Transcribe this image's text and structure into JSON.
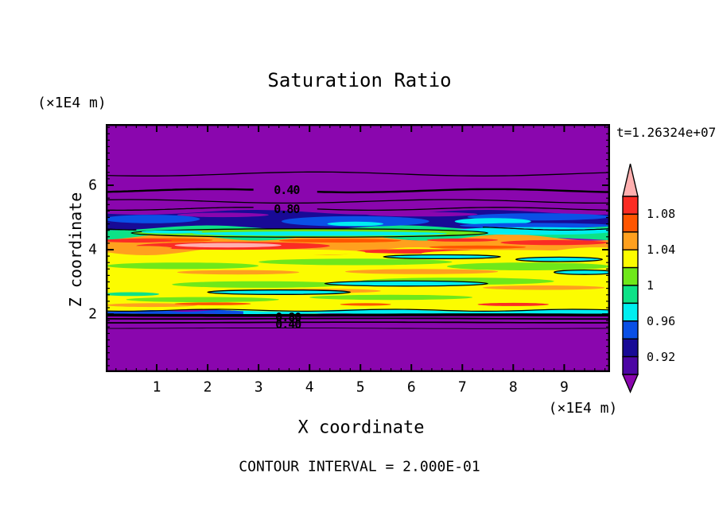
{
  "title": "Saturation Ratio",
  "time_annotation": "t=1.26324e+07",
  "footer_note": "CONTOUR INTERVAL = 2.000E-01",
  "x_axis": {
    "label": "X coordinate",
    "unit": "(×1E4 m)",
    "ticks": [
      1,
      2,
      3,
      4,
      5,
      6,
      7,
      8,
      9
    ],
    "minor_step": 0.2,
    "range": [
      0,
      9.9
    ]
  },
  "y_axis": {
    "label": "Z coordinate",
    "unit": "(×1E4 m)",
    "ticks": [
      2,
      4,
      6
    ],
    "minor_step": 0.2,
    "range": [
      0.2,
      7.9
    ]
  },
  "colorbar": {
    "over_arrow_color": "#FFB0B0",
    "under_arrow_color": "#8A06AE",
    "segments": [
      {
        "color": "#FB2C24",
        "label": "1.08"
      },
      {
        "color": "#FF5500"
      },
      {
        "color": "#FFA01E",
        "label": "1.04"
      },
      {
        "color": "#FCFC00"
      },
      {
        "color": "#6FE81A",
        "label": "1"
      },
      {
        "color": "#0DE287"
      },
      {
        "color": "#00EEF0",
        "label": "0.96"
      },
      {
        "color": "#0A50E6"
      },
      {
        "color": "#180A96",
        "label": "0.92"
      },
      {
        "color": "#4C06A4"
      }
    ]
  },
  "contour_labels": [
    {
      "text": "0.40",
      "x": 3.55,
      "z": 5.85
    },
    {
      "text": "0.80",
      "x": 3.55,
      "z": 5.27
    },
    {
      "text": "0.80",
      "x": 3.58,
      "z": 1.9
    },
    {
      "text": "0.40",
      "x": 3.58,
      "z": 1.67
    }
  ],
  "chart_data": {
    "type": "heatmap",
    "title": "Saturation Ratio",
    "xlabel": "X coordinate (×1E4 m)",
    "ylabel": "Z coordinate (×1E4 m)",
    "xlim": [
      0,
      9.9
    ],
    "ylim": [
      0.2,
      7.9
    ],
    "time": "t=1.26324e+07",
    "contour_interval": 0.2,
    "colormap_levels": [
      0.9,
      0.92,
      0.94,
      0.96,
      0.98,
      1.0,
      1.02,
      1.04,
      1.06,
      1.08,
      1.1
    ],
    "colormap_colors": [
      "#4C06A4",
      "#180A96",
      "#0A50E6",
      "#00EEF0",
      "#0DE287",
      "#6FE81A",
      "#FCFC00",
      "#FFA01E",
      "#FF5500",
      "#FB2C24"
    ],
    "background_color": "#8A06AE",
    "bands": [
      {
        "z0": 4.62,
        "z1": 5.16,
        "color": "#180A96",
        "amp": 3.0,
        "freq": 2.2,
        "phase": 0.6
      },
      {
        "z0": 4.3,
        "z1": 4.68,
        "color": "#0DE287",
        "amp": 3.0,
        "freq": 2.6,
        "phase": 1.4
      },
      {
        "z0": 3.72,
        "z1": 4.38,
        "color": "#FFA01E",
        "amp": 4.0,
        "freq": 3.0,
        "phase": 2.2
      },
      {
        "z0": 2.06,
        "z1": 3.95,
        "color": "#FCFC00",
        "amp": 5.0,
        "freq": 2.8,
        "phase": 0.2
      },
      {
        "z0": 1.99,
        "z1": 2.12,
        "x0": 2.5,
        "x1": 9.9,
        "color": "#00EEF0",
        "amp": 1.5,
        "freq": 2.0,
        "phase": 0.0
      },
      {
        "z0": 1.99,
        "z1": 2.1,
        "x0": 0.0,
        "x1": 2.7,
        "color": "#0A50E6",
        "amp": 1.0,
        "freq": 2.0,
        "phase": 0.5
      }
    ],
    "lenses": [
      {
        "cx": 2.3,
        "cz": 5.08,
        "rx": 0.9,
        "rz": 0.07,
        "color": "#8A06AE"
      },
      {
        "cx": 6.2,
        "cz": 5.1,
        "rx": 1.1,
        "rz": 0.07,
        "color": "#8A06AE"
      },
      {
        "cx": 0.9,
        "cz": 4.95,
        "rx": 0.95,
        "rz": 0.13,
        "color": "#0A50E6"
      },
      {
        "cx": 4.9,
        "cz": 4.88,
        "rx": 1.45,
        "rz": 0.16,
        "color": "#0A50E6"
      },
      {
        "cx": 8.5,
        "cz": 5.02,
        "rx": 1.4,
        "rz": 0.11,
        "color": "#0A50E6"
      },
      {
        "cx": 7.6,
        "cz": 4.88,
        "rx": 0.75,
        "rz": 0.1,
        "color": "#00EEF0"
      },
      {
        "cx": 4.9,
        "cz": 4.8,
        "rx": 0.55,
        "rz": 0.07,
        "color": "#00EEF0"
      },
      {
        "cx": 8.45,
        "cz": 4.75,
        "rx": 1.5,
        "rz": 0.08,
        "color": "#0A50E6"
      },
      {
        "cx": 8.4,
        "cz": 4.58,
        "rx": 1.6,
        "rz": 0.12,
        "color": "#00EEF0"
      },
      {
        "cx": 4.0,
        "cz": 4.52,
        "rx": 3.5,
        "rz": 0.13,
        "color": "#6FE81A",
        "stroke": true
      },
      {
        "cx": 4.2,
        "cz": 4.5,
        "rx": 2.5,
        "rz": 0.07,
        "color": "#00EEF0"
      },
      {
        "cx": 1.3,
        "cz": 4.55,
        "rx": 0.6,
        "rz": 0.05,
        "color": "#00EEF0"
      },
      {
        "cx": 1.1,
        "cz": 4.3,
        "rx": 1.0,
        "rz": 0.06,
        "color": "#FF5500"
      },
      {
        "cx": 4.6,
        "cz": 4.28,
        "rx": 1.2,
        "rz": 0.06,
        "color": "#FF5500"
      },
      {
        "cx": 7.0,
        "cz": 4.3,
        "rx": 0.7,
        "rz": 0.05,
        "color": "#FB2C24"
      },
      {
        "cx": 7.3,
        "cz": 4.08,
        "rx": 0.95,
        "rz": 0.05,
        "color": "#FF5500"
      },
      {
        "cx": 0.6,
        "cz": 4.28,
        "rx": 0.7,
        "rz": 0.06,
        "color": "#FB2C24"
      },
      {
        "cx": 2.5,
        "cz": 4.12,
        "rx": 1.9,
        "rz": 0.12,
        "color": "#FB2C24"
      },
      {
        "cx": 2.4,
        "cz": 4.14,
        "rx": 1.05,
        "rz": 0.07,
        "color": "#FFB0B0"
      },
      {
        "cx": 6.1,
        "cz": 3.95,
        "rx": 1.2,
        "rz": 0.07,
        "color": "#FB2C24"
      },
      {
        "cx": 8.8,
        "cz": 4.22,
        "rx": 1.05,
        "rz": 0.08,
        "color": "#FB2C24"
      },
      {
        "cx": 3.6,
        "cz": 3.92,
        "rx": 1.5,
        "rz": 0.09,
        "color": "#FCFC00"
      },
      {
        "cx": 7.9,
        "cz": 3.88,
        "rx": 1.7,
        "rz": 0.11,
        "color": "#FCFC00"
      },
      {
        "cx": 0.6,
        "cz": 4.05,
        "rx": 0.7,
        "rz": 0.07,
        "color": "#FFA01E"
      },
      {
        "cx": 1.5,
        "cz": 3.5,
        "rx": 1.5,
        "rz": 0.1,
        "color": "#6FE81A"
      },
      {
        "cx": 4.9,
        "cz": 3.62,
        "rx": 1.9,
        "rz": 0.1,
        "color": "#6FE81A"
      },
      {
        "cx": 8.3,
        "cz": 3.48,
        "rx": 1.6,
        "rz": 0.12,
        "color": "#6FE81A"
      },
      {
        "cx": 3.0,
        "cz": 2.92,
        "rx": 1.7,
        "rz": 0.1,
        "color": "#6FE81A"
      },
      {
        "cx": 6.9,
        "cz": 3.02,
        "rx": 1.9,
        "rz": 0.11,
        "color": "#6FE81A"
      },
      {
        "cx": 1.9,
        "cz": 2.45,
        "rx": 1.5,
        "rz": 0.08,
        "color": "#6FE81A"
      },
      {
        "cx": 5.6,
        "cz": 2.52,
        "rx": 1.6,
        "rz": 0.08,
        "color": "#6FE81A"
      },
      {
        "cx": 2.6,
        "cz": 3.3,
        "rx": 1.2,
        "rz": 0.07,
        "color": "#FFA01E"
      },
      {
        "cx": 6.2,
        "cz": 3.32,
        "rx": 1.5,
        "rz": 0.08,
        "color": "#FFA01E"
      },
      {
        "cx": 4.1,
        "cz": 2.72,
        "rx": 1.3,
        "rz": 0.07,
        "color": "#FFA01E"
      },
      {
        "cx": 8.6,
        "cz": 2.82,
        "rx": 1.2,
        "rz": 0.07,
        "color": "#FFA01E"
      },
      {
        "cx": 0.9,
        "cz": 2.28,
        "rx": 0.9,
        "rz": 0.06,
        "color": "#FFA01E"
      },
      {
        "cx": 2.1,
        "cz": 2.32,
        "rx": 0.75,
        "rz": 0.045,
        "color": "#FF5500"
      },
      {
        "cx": 5.1,
        "cz": 2.3,
        "rx": 0.5,
        "rz": 0.04,
        "color": "#FF5500"
      },
      {
        "cx": 8.0,
        "cz": 2.3,
        "rx": 0.7,
        "rz": 0.05,
        "color": "#FB2C24"
      },
      {
        "cx": 6.6,
        "cz": 3.78,
        "rx": 1.15,
        "rz": 0.06,
        "color": "#00EEF0",
        "stroke": true
      },
      {
        "cx": 8.9,
        "cz": 3.7,
        "rx": 0.85,
        "rz": 0.07,
        "color": "#00EEF0",
        "stroke": true
      },
      {
        "cx": 5.9,
        "cz": 2.95,
        "rx": 1.6,
        "rz": 0.08,
        "color": "#00EEF0",
        "stroke": true
      },
      {
        "cx": 3.4,
        "cz": 2.68,
        "rx": 1.4,
        "rz": 0.07,
        "color": "#00EEF0",
        "stroke": true
      },
      {
        "cx": 9.4,
        "cz": 3.3,
        "rx": 0.6,
        "rz": 0.07,
        "color": "#00EEF0",
        "stroke": true
      },
      {
        "cx": 0.5,
        "cz": 2.62,
        "rx": 0.55,
        "rz": 0.06,
        "color": "#0DE287"
      }
    ],
    "contour_lines": [
      {
        "z": 6.35,
        "w": 1.3,
        "amp": 2.5,
        "freq": 1.5,
        "phase": 0.8
      },
      {
        "z": 5.83,
        "w": 2.4,
        "amp": 2.0,
        "freq": 1.8,
        "phase": 2.3,
        "gap": [
          2.9,
          4.15
        ]
      },
      {
        "z": 5.5,
        "w": 1.3,
        "amp": 2.2,
        "freq": 1.6,
        "phase": 4.2
      },
      {
        "z": 5.27,
        "w": 1.3,
        "amp": 1.8,
        "freq": 2.0,
        "phase": 1.2,
        "gap": [
          2.9,
          4.15
        ]
      },
      {
        "z": 4.66,
        "w": 1.3,
        "amp": 2.0,
        "freq": 2.4,
        "phase": 0.4,
        "gap": [
          0.6,
          7.4
        ]
      },
      {
        "z": 2.12,
        "w": 1.2,
        "amp": 1.2,
        "freq": 2.8,
        "phase": 0.9
      },
      {
        "z": 1.97,
        "w": 3.5,
        "amp": 0.4,
        "freq": 1.0,
        "phase": 0.0
      },
      {
        "z": 1.86,
        "w": 1.7,
        "amp": 0.4,
        "freq": 1.2,
        "phase": 0.5
      },
      {
        "z": 1.74,
        "w": 1.7,
        "amp": 0.4,
        "freq": 1.0,
        "phase": 1.5
      },
      {
        "z": 1.56,
        "w": 0.9,
        "amp": 0.4,
        "freq": 1.1,
        "phase": 2.5
      }
    ]
  }
}
